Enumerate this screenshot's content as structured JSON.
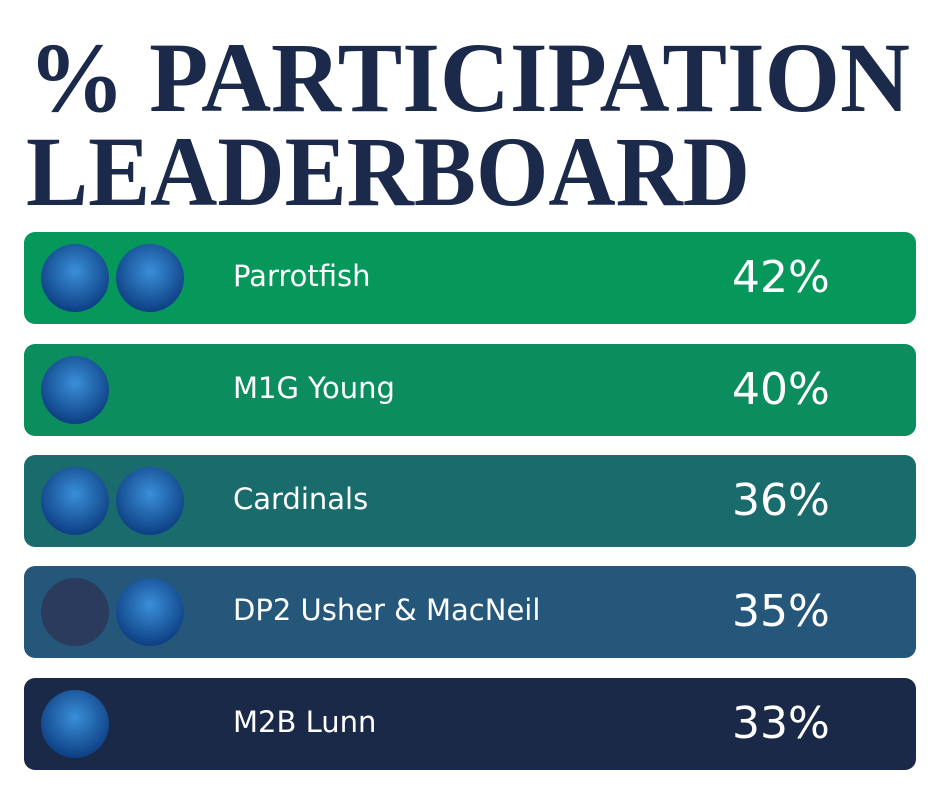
{
  "header": {
    "title_lines": [
      "% PARTICIPATION",
      "LEADERBOARD"
    ]
  },
  "rows": [
    {
      "name": "Parrotfish",
      "value": "42%"
    },
    {
      "name": "M1G Young",
      "value": "40%"
    },
    {
      "name": "Cardinals",
      "value": "36%"
    },
    {
      "name": "DP2 Usher & MacNeil",
      "value": "35%"
    },
    {
      "name": "M2B Lunn",
      "value": "33%"
    }
  ]
}
